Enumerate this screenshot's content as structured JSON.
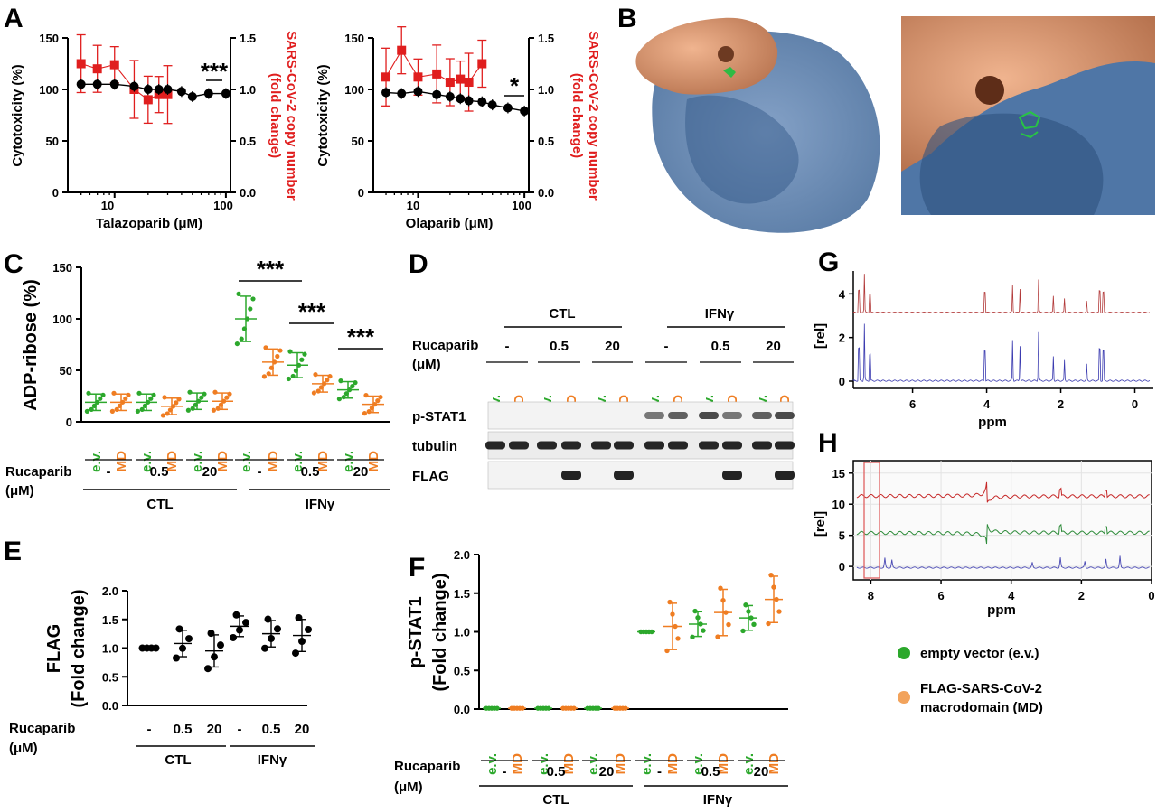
{
  "panels": {
    "A": "A",
    "B": "B",
    "C": "C",
    "D": "D",
    "E": "E",
    "F": "F",
    "G": "G",
    "H": "H"
  },
  "panelA": {
    "left": {
      "xlabel": "Talazoparib (μM)",
      "ylabel": "Cytotoxicity (%)",
      "y2label1": "SARS-CoV-2 copy number",
      "y2label2": "(fold change)",
      "stars": "***",
      "yticks": [
        "0",
        "50",
        "100",
        "150"
      ],
      "y2ticks": [
        "0.0",
        "0.5",
        "1.0",
        "1.5"
      ],
      "xticks": [
        "10",
        "100"
      ]
    },
    "right": {
      "xlabel": "Olaparib (μM)",
      "ylabel": "Cytotoxicity (%)",
      "y2label1": "SARS-CoV-2 copy number",
      "y2label2": "(fold change)",
      "stars": "*",
      "yticks": [
        "0",
        "50",
        "100",
        "150"
      ],
      "y2ticks": [
        "0.0",
        "0.5",
        "1.0",
        "1.5"
      ],
      "xticks": [
        "10",
        "100"
      ]
    }
  },
  "groups": {
    "ev": "e.v.",
    "md": "MD",
    "rucaparib": "Rucaparib",
    "unit": "(μM)",
    "doses": [
      "-",
      "0.5",
      "20"
    ],
    "ctl": "CTL",
    "ifn": "IFNγ"
  },
  "panelC": {
    "ylabel": "ADP-ribose (%)",
    "yticks": [
      "0",
      "50",
      "100",
      "150"
    ],
    "stars": "***"
  },
  "panelD": {
    "rows": [
      "p-STAT1",
      "tubulin",
      "FLAG"
    ]
  },
  "panelE": {
    "ylabel1": "FLAG",
    "ylabel2": "(Fold change)",
    "yticks": [
      "0.0",
      "0.5",
      "1.0",
      "1.5",
      "2.0"
    ]
  },
  "panelF": {
    "ylabel1": "p-STAT1",
    "ylabel2": "(Fold change)",
    "yticks": [
      "0.0",
      "0.5",
      "1.0",
      "1.5",
      "2.0"
    ]
  },
  "panelG": {
    "ylabel": "[rel]",
    "xlabel": "ppm",
    "yticks": [
      "0",
      "2",
      "4"
    ],
    "xticks": [
      "6",
      "4",
      "2",
      "0"
    ]
  },
  "panelH": {
    "ylabel": "[rel]",
    "xlabel": "ppm",
    "yticks": [
      "0",
      "5",
      "10",
      "15"
    ],
    "xticks": [
      "8",
      "6",
      "4",
      "2",
      "0"
    ]
  },
  "legend": {
    "ev": "empty vector (e.v.)",
    "md1": "FLAG-SARS-CoV-2",
    "md2": "macrodomain (MD)"
  },
  "colors": {
    "ev": "#2ca82c",
    "md": "#ef7d22",
    "red": "#e01e1e",
    "blue": "#4a6fa5",
    "tan": "#d9956c"
  },
  "chart_data": [
    {
      "type": "scatter",
      "panel": "A-left",
      "x": [
        5,
        7,
        10,
        15,
        20,
        25,
        30,
        40,
        50,
        70,
        100
      ],
      "y": [
        105,
        105,
        105,
        103,
        100,
        100,
        100,
        98,
        93,
        96,
        96
      ],
      "y2": [
        1.25,
        1.2,
        1.24,
        1.0,
        0.9,
        0.95,
        0.95,
        null,
        null,
        null,
        null
      ],
      "xscale": "log",
      "ylim": [
        0,
        150
      ],
      "y2lim": [
        0,
        1.5
      ]
    },
    {
      "type": "scatter",
      "panel": "A-right",
      "x": [
        5,
        7,
        10,
        15,
        20,
        25,
        30,
        40,
        50,
        70,
        100
      ],
      "y": [
        97,
        96,
        98,
        95,
        93,
        91,
        89,
        88,
        85,
        82,
        79
      ],
      "y2": [
        1.12,
        1.38,
        1.12,
        1.15,
        1.07,
        1.1,
        1.07,
        1.25,
        null,
        null,
        null
      ],
      "xscale": "log",
      "ylim": [
        0,
        150
      ],
      "y2lim": [
        0,
        1.5
      ]
    },
    {
      "type": "scatter",
      "panel": "C",
      "ylim": [
        0,
        150
      ],
      "groups": [
        {
          "cond": "CTL -",
          "ev": 19,
          "md": 19
        },
        {
          "cond": "CTL 0.5",
          "ev": 19,
          "md": 15
        },
        {
          "cond": "CTL 20",
          "ev": 20,
          "md": 20
        },
        {
          "cond": "IFNγ -",
          "ev": 100,
          "md": 58
        },
        {
          "cond": "IFNγ 0.5",
          "ev": 55,
          "md": 37
        },
        {
          "cond": "IFNγ 20",
          "ev": 31,
          "md": 17
        }
      ]
    },
    {
      "type": "scatter",
      "panel": "E",
      "ylim": [
        0,
        2.0
      ],
      "groups": [
        {
          "cond": "CTL -",
          "mean": 1.0
        },
        {
          "cond": "CTL 0.5",
          "mean": 1.08
        },
        {
          "cond": "CTL 20",
          "mean": 0.95
        },
        {
          "cond": "IFNγ -",
          "mean": 1.38
        },
        {
          "cond": "IFNγ 0.5",
          "mean": 1.25
        },
        {
          "cond": "IFNγ 20",
          "mean": 1.22
        }
      ]
    },
    {
      "type": "scatter",
      "panel": "F",
      "ylim": [
        0,
        2.0
      ],
      "groups": [
        {
          "cond": "CTL -",
          "ev": 0.01,
          "md": 0.01
        },
        {
          "cond": "CTL 0.5",
          "ev": 0.01,
          "md": 0.01
        },
        {
          "cond": "CTL 20",
          "ev": 0.01,
          "md": 0.01
        },
        {
          "cond": "IFNγ -",
          "ev": 1.0,
          "md": 1.07
        },
        {
          "cond": "IFNγ 0.5",
          "ev": 1.1,
          "md": 1.25
        },
        {
          "cond": "IFNγ 20",
          "ev": 1.18,
          "md": 1.42
        }
      ]
    }
  ]
}
